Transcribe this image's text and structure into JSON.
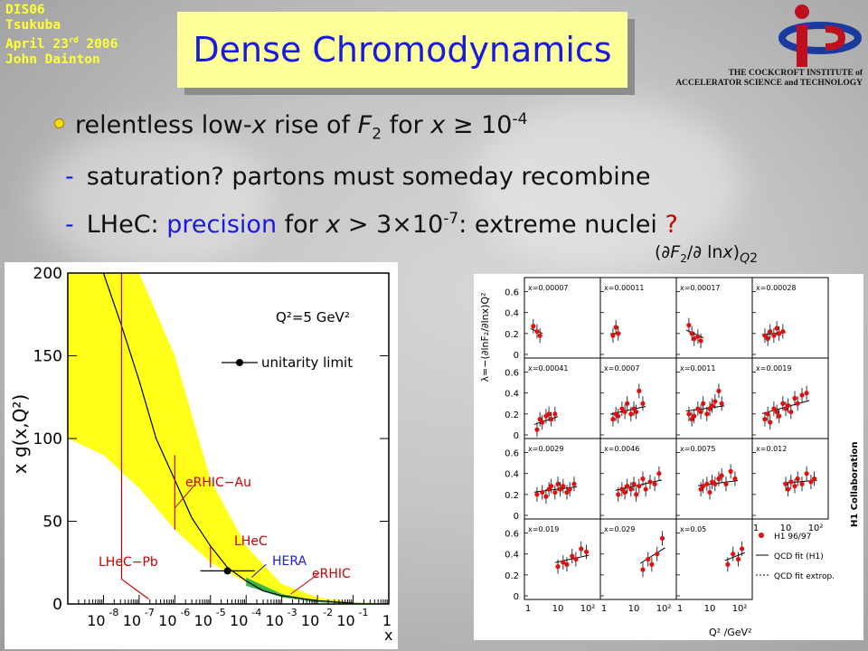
{
  "conference": {
    "lines": [
      "DIS06",
      "Tsukuba",
      "April 23",
      "John Dainton"
    ],
    "date_suffix": "rd",
    "date_year": " 2006"
  },
  "title": "Dense Chromodynamics",
  "institute": {
    "line1": "THE COCKCROFT INSTITUTE of",
    "line2": "ACCELERATOR SCIENCE and TECHNOLOGY"
  },
  "bullets": {
    "b1": {
      "pre": "relentless low-",
      "x": "x",
      "mid": " rise of ",
      "F": "F",
      "Fsub": "2",
      "post": " for ",
      "x2": "x",
      "ge": " ≥ 10",
      "exp": "-4"
    },
    "b2": {
      "dash": "-",
      "text": "saturation? partons must someday recombine"
    },
    "b3": {
      "dash": "-",
      "pre": "LHeC: ",
      "hl": "precision",
      "post1": " for ",
      "x": "x",
      "post2": " > 3×10",
      "exp": "-7",
      "post3": ": extreme nuclei ",
      "qm": "?"
    }
  },
  "deriv_label": {
    "open": "(∂",
    "F": "F",
    "sub": "2",
    "mid": "/∂ ln",
    "x": "x",
    "close": ")",
    "Q": "Q",
    "Qexp": "2"
  },
  "left_plot": {
    "ylabel": "x g(x,Q²)",
    "xlabel": "x",
    "q2_label": "Q²=5 GeV²",
    "legend": "unitarity limit",
    "labels": {
      "erhic_au": "eRHIC−Au",
      "lhec": "LHeC",
      "hera": "HERA",
      "erhic": "eRHIC",
      "lhec_pb": "LHeC−Pb"
    },
    "yticks": [
      "0",
      "50",
      "100",
      "150",
      "200"
    ],
    "xticks_base": "10",
    "xticks_exp": [
      "-8",
      "-7",
      "-6",
      "-5",
      "-4",
      "-3",
      "-2",
      "-1"
    ],
    "xticks_last": "1"
  },
  "right_plot": {
    "ylabel": "λ=−(∂lnF₂/∂lnx)Q²",
    "xlabel": "Q² /GeV²",
    "collab": "H1 Collaboration",
    "yticks": [
      "0",
      "0.2",
      "0.4",
      "0.6"
    ],
    "xticks": [
      "1",
      "10",
      "10²"
    ],
    "panels": [
      "x=0.00007",
      "x=0.00011",
      "x=0.00017",
      "x=0.00028",
      "x=0.00041",
      "x=0.0007",
      "x=0.0011",
      "x=0.0019",
      "x=0.0029",
      "x=0.0046",
      "x=0.0075",
      "x=0.012",
      "x=0.019",
      "x=0.029",
      "x=0.05"
    ],
    "legend": [
      "H1 96/97",
      "QCD fit (H1)",
      "QCD fit extrop."
    ]
  },
  "chart_data": [
    {
      "type": "line",
      "title": "",
      "xlabel": "x",
      "ylabel": "x g(x,Q²)",
      "xscale": "log",
      "xlim": [
        1e-09,
        1
      ],
      "ylim": [
        0,
        200
      ],
      "annotation": "Q²=5 GeV²",
      "series": [
        {
          "name": "",
          "x": [
            1e-08,
            3e-08,
            1e-07,
            3e-07,
            1e-06,
            3e-06,
            1e-05,
            3e-05,
            0.0001,
            0.0003,
            0.001,
            0.01,
            0.1
          ],
          "y": [
            200,
            170,
            135,
            100,
            75,
            52,
            35,
            22,
            14,
            8,
            5,
            2,
            0.5
          ]
        }
      ],
      "band_upper": {
        "x": [
          1e-08,
          1e-07,
          1e-06,
          1e-05,
          0.0001,
          0.001,
          0.01,
          0.1
        ],
        "y": [
          200,
          200,
          150,
          75,
          35,
          12,
          4,
          1
        ]
      },
      "band_lower": {
        "x": [
          1e-09,
          1e-08,
          1e-07,
          1e-06,
          1e-05,
          0.0001,
          0.001,
          0.01,
          0.1
        ],
        "y": [
          100,
          90,
          70,
          45,
          25,
          13,
          6,
          2,
          0.5
        ]
      },
      "point": {
        "name": "unitarity limit",
        "x": [
          3e-05
        ],
        "y": [
          20
        ]
      },
      "markers": [
        {
          "label": "LHeC−Pb",
          "x": 1e-08,
          "ymax": 200
        },
        {
          "label": "eRHIC−Au",
          "x": 1e-06,
          "ymax": 90
        },
        {
          "label": "LHeC",
          "x": 1e-05,
          "ymax": 35
        },
        {
          "label": "HERA",
          "x": 0.0001
        },
        {
          "label": "eRHIC",
          "x": 0.001
        }
      ]
    },
    {
      "type": "scatter",
      "title": "",
      "xlabel": "Q² /GeV²",
      "ylabel": "λ=−(∂lnF₂/∂lnx)Q²",
      "xscale": "log",
      "xlim": [
        1,
        200
      ],
      "ylim": [
        0,
        0.7
      ],
      "series": [
        {
          "name": "x=0.00007",
          "x": [
            1.5,
            2,
            2.5
          ],
          "y": [
            0.27,
            0.22,
            0.18
          ]
        },
        {
          "name": "x=0.00011",
          "x": [
            2,
            2.5,
            3
          ],
          "y": [
            0.18,
            0.26,
            0.2
          ]
        },
        {
          "name": "x=0.00017",
          "x": [
            2,
            2.5,
            3,
            4,
            5
          ],
          "y": [
            0.28,
            0.2,
            0.15,
            0.17,
            0.13
          ]
        },
        {
          "name": "x=0.00028",
          "x": [
            2,
            2.5,
            3,
            4,
            5,
            6,
            8
          ],
          "y": [
            0.18,
            0.15,
            0.22,
            0.18,
            0.25,
            0.2,
            0.22
          ]
        },
        {
          "name": "x=0.00041",
          "x": [
            2,
            2.5,
            3,
            4,
            5,
            6,
            8
          ],
          "y": [
            0.05,
            0.15,
            0.12,
            0.18,
            0.2,
            0.15,
            0.2
          ]
        },
        {
          "name": "x=0.0007",
          "x": [
            2,
            2.5,
            3,
            4,
            5,
            6,
            8,
            10,
            12,
            15,
            20
          ],
          "y": [
            0.15,
            0.2,
            0.18,
            0.25,
            0.22,
            0.3,
            0.2,
            0.25,
            0.22,
            0.42,
            0.3
          ]
        },
        {
          "name": "x=0.0011",
          "x": [
            2,
            2.5,
            3,
            4,
            5,
            6,
            8,
            10,
            12,
            15,
            20,
            25
          ],
          "y": [
            0.2,
            0.15,
            0.18,
            0.25,
            0.22,
            0.3,
            0.2,
            0.25,
            0.28,
            0.32,
            0.42,
            0.3
          ]
        },
        {
          "name": "x=0.0019",
          "x": [
            2,
            2.5,
            3,
            4,
            5,
            6,
            8,
            10,
            12,
            15,
            20,
            25,
            35,
            50
          ],
          "y": [
            0.15,
            0.2,
            0.12,
            0.25,
            0.22,
            0.18,
            0.3,
            0.25,
            0.28,
            0.22,
            0.35,
            0.3,
            0.38,
            0.4
          ]
        },
        {
          "name": "x=0.0029",
          "x": [
            2,
            3,
            4,
            5,
            6,
            8,
            10,
            12,
            15,
            20,
            25,
            35
          ],
          "y": [
            0.2,
            0.22,
            0.18,
            0.25,
            0.28,
            0.22,
            0.3,
            0.25,
            0.28,
            0.22,
            0.25,
            0.3
          ]
        },
        {
          "name": "x=0.0046",
          "x": [
            3,
            4,
            5,
            6,
            8,
            10,
            12,
            15,
            20,
            25,
            35,
            50,
            70
          ],
          "y": [
            0.2,
            0.25,
            0.22,
            0.28,
            0.25,
            0.3,
            0.2,
            0.28,
            0.35,
            0.25,
            0.32,
            0.3,
            0.4
          ]
        },
        {
          "name": "x=0.0075",
          "x": [
            5,
            6,
            8,
            10,
            12,
            15,
            20,
            25,
            35,
            50,
            70
          ],
          "y": [
            0.25,
            0.28,
            0.3,
            0.22,
            0.32,
            0.3,
            0.35,
            0.38,
            0.3,
            0.42,
            0.35
          ]
        },
        {
          "name": "x=0.012",
          "x": [
            10,
            12,
            15,
            20,
            25,
            35,
            50,
            70,
            90
          ],
          "y": [
            0.3,
            0.25,
            0.32,
            0.28,
            0.35,
            0.3,
            0.4,
            0.32,
            0.35
          ]
        },
        {
          "name": "x=0.019",
          "x": [
            10,
            15,
            20,
            30,
            40,
            60,
            90
          ],
          "y": [
            0.28,
            0.32,
            0.3,
            0.38,
            0.35,
            0.45,
            0.42
          ]
        },
        {
          "name": "x=0.029",
          "x": [
            20,
            30,
            40,
            60,
            90
          ],
          "y": [
            0.25,
            0.35,
            0.3,
            0.4,
            0.55
          ]
        },
        {
          "name": "x=0.05",
          "x": [
            40,
            60,
            90,
            120
          ],
          "y": [
            0.3,
            0.4,
            0.35,
            0.45
          ]
        }
      ]
    }
  ]
}
